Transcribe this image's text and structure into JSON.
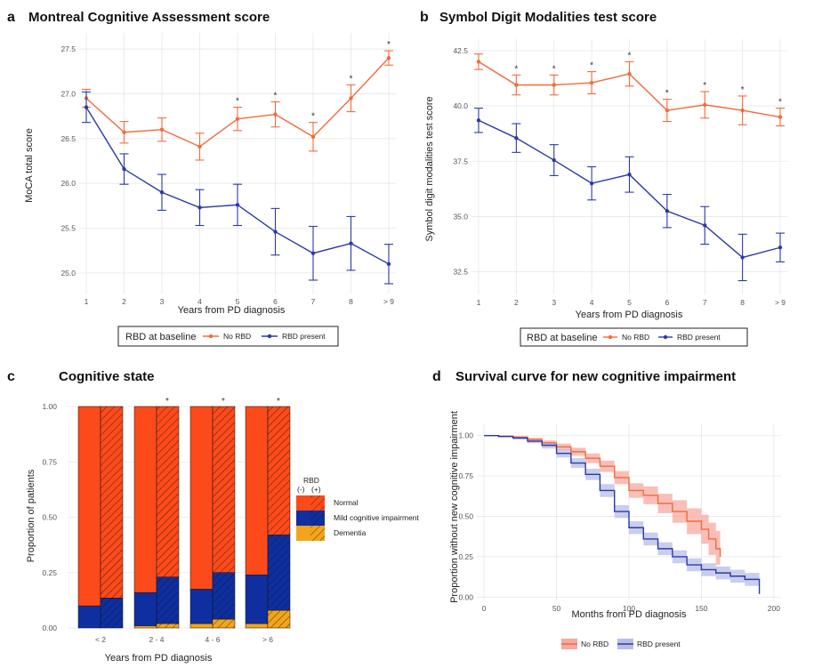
{
  "colors": {
    "no_rbd": "#f26b3a",
    "rbd": "#2b3aa8",
    "normal": "#fc4a1a",
    "mci": "#0f2fa0",
    "dementia": "#f2a51a",
    "no_rbd_ci": "#f7a8a0",
    "rbd_ci": "#b6bde6"
  },
  "chart_data": [
    {
      "id": "a",
      "letter": "a",
      "type": "line",
      "title": "Montreal Cognitive Assessment score",
      "xlabel": "Years from PD diagnosis",
      "ylabel": "MoCA total score",
      "categories": [
        "1",
        "2",
        "3",
        "4",
        "5",
        "6",
        "7",
        "8",
        "> 9"
      ],
      "yticks": [
        "25.0",
        "25.5",
        "26.0",
        "26.5",
        "27.0",
        "27.5"
      ],
      "ylim": [
        24.85,
        27.6
      ],
      "significance": [
        "",
        "",
        "",
        "",
        "*",
        "*",
        "*",
        "*",
        "*"
      ],
      "legend_title": "RBD at baseline",
      "series": [
        {
          "name": "No RBD",
          "values": [
            26.95,
            26.57,
            26.6,
            26.41,
            26.72,
            26.77,
            26.52,
            26.95,
            27.4
          ],
          "err": [
            0.1,
            0.12,
            0.13,
            0.15,
            0.13,
            0.14,
            0.16,
            0.15,
            0.08
          ]
        },
        {
          "name": "RBD present",
          "values": [
            26.85,
            26.16,
            25.9,
            25.73,
            25.76,
            25.46,
            25.22,
            25.33,
            25.1
          ],
          "err": [
            0.17,
            0.17,
            0.2,
            0.2,
            0.23,
            0.26,
            0.3,
            0.3,
            0.22
          ]
        }
      ]
    },
    {
      "id": "b",
      "letter": "b",
      "type": "line",
      "title": "Symbol Digit Modalities test score",
      "xlabel": "Years from PD diagnosis",
      "ylabel": "Symbol digit modalities test score",
      "categories": [
        "1",
        "2",
        "3",
        "4",
        "5",
        "6",
        "7",
        "8",
        "> 9"
      ],
      "yticks": [
        "32.5",
        "35.0",
        "37.5",
        "40.0",
        "42.5"
      ],
      "ylim": [
        31.8,
        42.7
      ],
      "significance": [
        "",
        "*",
        "*",
        "*",
        "*",
        "*",
        "*",
        "*",
        "*"
      ],
      "legend_title": "RBD at baseline",
      "series": [
        {
          "name": "No RBD",
          "values": [
            42.0,
            40.95,
            40.95,
            41.05,
            41.45,
            39.8,
            40.05,
            39.8,
            39.5
          ],
          "err": [
            0.35,
            0.45,
            0.45,
            0.5,
            0.55,
            0.5,
            0.6,
            0.65,
            0.4
          ]
        },
        {
          "name": "RBD present",
          "values": [
            39.35,
            38.55,
            37.55,
            36.5,
            36.9,
            35.25,
            34.6,
            33.15,
            33.6
          ],
          "err": [
            0.55,
            0.65,
            0.7,
            0.75,
            0.8,
            0.75,
            0.85,
            1.05,
            0.65
          ]
        }
      ]
    },
    {
      "id": "c",
      "letter": "c",
      "type": "bar",
      "stacked": true,
      "title": "Cognitive state",
      "xlabel": "Years from PD diagnosis",
      "ylabel": "Proportion of patients",
      "categories": [
        "< 2",
        "2 - 4",
        "4 - 6",
        "> 6"
      ],
      "yticks": [
        "0.00",
        "0.25",
        "0.50",
        "0.75",
        "1.00"
      ],
      "ylim": [
        0,
        1
      ],
      "significance": [
        "",
        "*",
        "*",
        "*"
      ],
      "groups": [
        "RBD (-)",
        "RBD (+)"
      ],
      "legend_title": "RBD",
      "legend_sub": [
        "(-)",
        "(+)"
      ],
      "states": [
        "Normal",
        "Mild cognitive impairment",
        "Dementia"
      ],
      "series": [
        {
          "name": "Dementia",
          "rbd_neg": [
            0.0,
            0.01,
            0.02,
            0.02
          ],
          "rbd_pos": [
            0.0,
            0.02,
            0.04,
            0.08
          ]
        },
        {
          "name": "Mild cognitive impairment",
          "rbd_neg": [
            0.1,
            0.15,
            0.155,
            0.22
          ],
          "rbd_pos": [
            0.135,
            0.21,
            0.21,
            0.34
          ]
        },
        {
          "name": "Normal",
          "rbd_neg": [
            0.9,
            0.84,
            0.825,
            0.76
          ],
          "rbd_pos": [
            0.865,
            0.77,
            0.75,
            0.58
          ]
        }
      ]
    },
    {
      "id": "d",
      "letter": "d",
      "type": "line",
      "subtype": "survival",
      "title": "Survival curve for new cognitive impairment",
      "xlabel": "Months from PD diagnosis",
      "ylabel": "Proportion without new cognitive impairment",
      "xticks": [
        "0",
        "50",
        "100",
        "150",
        "200"
      ],
      "xlim": [
        -5,
        205
      ],
      "yticks": [
        "0.00",
        "0.25",
        "0.50",
        "0.75",
        "1.00"
      ],
      "ylim": [
        -0.02,
        1.07
      ],
      "series": [
        {
          "name": "No RBD",
          "x": [
            0,
            10,
            20,
            30,
            40,
            50,
            60,
            70,
            80,
            90,
            100,
            110,
            120,
            130,
            140,
            150,
            155,
            160,
            163
          ],
          "y": [
            1.0,
            0.995,
            0.99,
            0.975,
            0.955,
            0.93,
            0.9,
            0.86,
            0.81,
            0.74,
            0.66,
            0.63,
            0.58,
            0.53,
            0.47,
            0.42,
            0.36,
            0.3,
            0.25
          ],
          "lo": [
            1.0,
            0.99,
            0.982,
            0.965,
            0.94,
            0.91,
            0.875,
            0.83,
            0.775,
            0.7,
            0.615,
            0.575,
            0.52,
            0.46,
            0.39,
            0.33,
            0.26,
            0.2,
            0.15
          ],
          "hi": [
            1.0,
            1.0,
            0.998,
            0.987,
            0.97,
            0.95,
            0.925,
            0.89,
            0.845,
            0.78,
            0.705,
            0.685,
            0.64,
            0.6,
            0.55,
            0.51,
            0.46,
            0.41,
            0.36
          ]
        },
        {
          "name": "RBD present",
          "x": [
            0,
            10,
            20,
            30,
            40,
            50,
            60,
            70,
            80,
            90,
            100,
            110,
            120,
            130,
            140,
            150,
            160,
            170,
            180,
            190
          ],
          "y": [
            1.0,
            0.995,
            0.985,
            0.965,
            0.94,
            0.89,
            0.83,
            0.76,
            0.66,
            0.53,
            0.43,
            0.36,
            0.3,
            0.25,
            0.2,
            0.17,
            0.15,
            0.13,
            0.11,
            0.02
          ],
          "lo": [
            1.0,
            0.99,
            0.976,
            0.952,
            0.92,
            0.865,
            0.8,
            0.725,
            0.62,
            0.49,
            0.39,
            0.32,
            0.26,
            0.21,
            0.16,
            0.13,
            0.11,
            0.09,
            0.07,
            0.0
          ],
          "hi": [
            1.0,
            1.0,
            0.994,
            0.978,
            0.96,
            0.915,
            0.86,
            0.795,
            0.7,
            0.57,
            0.47,
            0.4,
            0.34,
            0.29,
            0.24,
            0.21,
            0.19,
            0.17,
            0.15,
            0.06
          ]
        }
      ]
    }
  ]
}
